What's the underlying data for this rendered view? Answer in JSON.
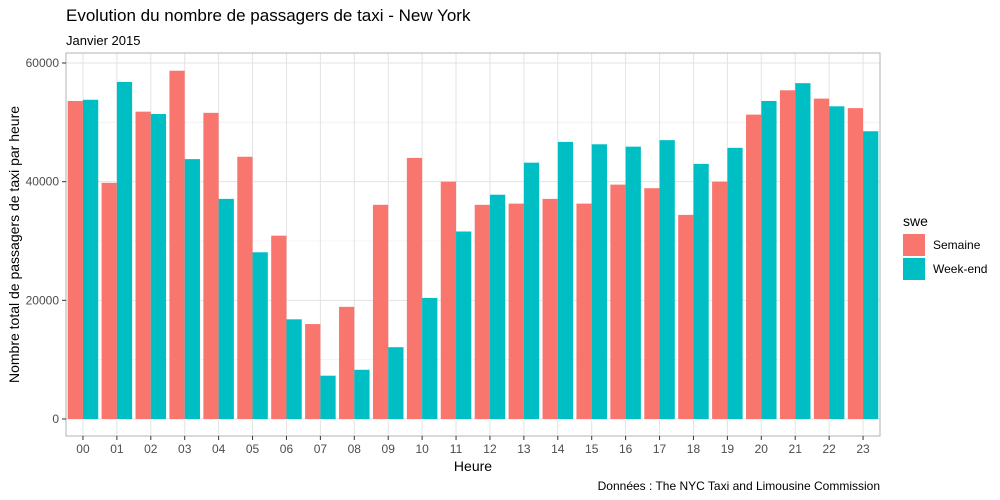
{
  "title": "Evolution du nombre de passagers de taxi - New York",
  "subtitle": "Janvier 2015",
  "caption": "Données : The NYC Taxi and Limousine Commission",
  "legend": {
    "title": "swe",
    "position": "right",
    "items": [
      {
        "label": "Semaine",
        "color": "#F8766D"
      },
      {
        "label": "Week-end",
        "color": "#00BFC4"
      }
    ]
  },
  "chart_data": {
    "type": "bar",
    "grouping": "dodge",
    "xlabel": "Heure",
    "ylabel": "Nombre total de passagers de taxi par heure",
    "categories": [
      "00",
      "01",
      "02",
      "03",
      "04",
      "05",
      "06",
      "07",
      "08",
      "09",
      "10",
      "11",
      "12",
      "13",
      "14",
      "15",
      "16",
      "17",
      "18",
      "19",
      "20",
      "21",
      "22",
      "23"
    ],
    "ylim": [
      0,
      63000
    ],
    "yticks": [
      0,
      20000,
      40000,
      60000
    ],
    "grid": true,
    "series": [
      {
        "name": "Semaine",
        "color": "#F8766D",
        "values": [
          53600,
          39800,
          51800,
          58700,
          51600,
          44200,
          30900,
          16000,
          18900,
          36100,
          44000,
          40000,
          36100,
          36300,
          37100,
          36300,
          39500,
          38900,
          34400,
          40000,
          51300,
          55400,
          54000,
          52400
        ]
      },
      {
        "name": "Week-end",
        "color": "#00BFC4",
        "values": [
          53800,
          56800,
          51400,
          43800,
          37100,
          28100,
          16800,
          7300,
          8300,
          12100,
          20400,
          31600,
          37800,
          43200,
          46700,
          46300,
          45900,
          47000,
          43000,
          45700,
          53600,
          56600,
          52700,
          48500
        ]
      }
    ]
  }
}
